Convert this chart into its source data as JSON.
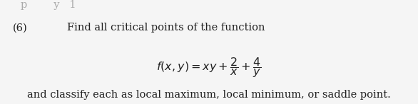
{
  "background_color": "#f5f5f5",
  "number_label": "(6)",
  "intro_text": "Find all critical points of the function",
  "formula_main": "$f(x, y) = xy + \\dfrac{2}{x} + \\dfrac{4}{y}$",
  "closing_text": "and classify each as local maximum, local minimum, or saddle point.",
  "fontsize_body": 10.5,
  "fontsize_formula": 11.5,
  "text_color": "#222222",
  "header_text": "p        y   1"
}
